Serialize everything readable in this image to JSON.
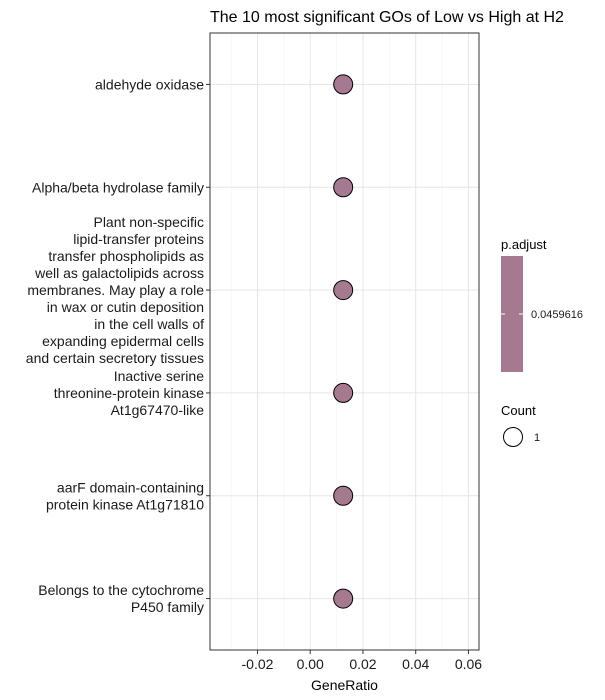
{
  "chart_data": {
    "type": "scatter",
    "title": "The 10 most significant GOs of Low vs High at H2",
    "xlabel": "GeneRatio",
    "ylabel": "",
    "xlim": [
      -0.038,
      0.064
    ],
    "x_ticks": [
      -0.02,
      0.0,
      0.02,
      0.04,
      0.06
    ],
    "x_tick_labels": [
      "-0.02",
      "0.00",
      "0.02",
      "0.04",
      "0.06"
    ],
    "grid": true,
    "legend_position": "right",
    "categories": [
      "aldehyde oxidase",
      "Alpha/beta hydrolase family",
      "Plant non-specific lipid-transfer proteins transfer phospholipids as well as galactolipids across membranes. May play a role in wax or cutin deposition in the cell walls of expanding epidermal cells and certain secretory tissues",
      "Inactive serine threonine-protein kinase At1g67470-like",
      "aarF domain-containing protein kinase At1g71810",
      "Belongs to the cytochrome P450 family"
    ],
    "category_lines": [
      [
        "aldehyde oxidase"
      ],
      [
        "Alpha/beta hydrolase family"
      ],
      [
        "Plant non-specific",
        "lipid-transfer proteins",
        "transfer phospholipids as",
        "well as galactolipids across",
        "membranes. May play a role",
        "in wax or cutin deposition",
        "in the cell walls of",
        "expanding epidermal cells",
        "and certain secretory tissues"
      ],
      [
        "Inactive serine",
        "threonine-protein kinase",
        "At1g67470-like"
      ],
      [
        "aarF domain-containing",
        "protein kinase At1g71810"
      ],
      [
        "Belongs to the cytochrome",
        "P450 family"
      ]
    ],
    "series": [
      {
        "x": [
          0.0125,
          0.0125,
          0.0125,
          0.0125,
          0.0125,
          0.0125
        ],
        "count": [
          1,
          1,
          1,
          1,
          1,
          1
        ],
        "p_adjust": [
          0.0459616,
          0.0459616,
          0.0459616,
          0.0459616,
          0.0459616,
          0.0459616
        ]
      }
    ],
    "point_color": "#A57A91",
    "legend": {
      "color_title": "p.adjust",
      "color_label": "0.0459616",
      "color_bar_color": "#A57A91",
      "size_title": "Count",
      "size_label": "1"
    }
  }
}
